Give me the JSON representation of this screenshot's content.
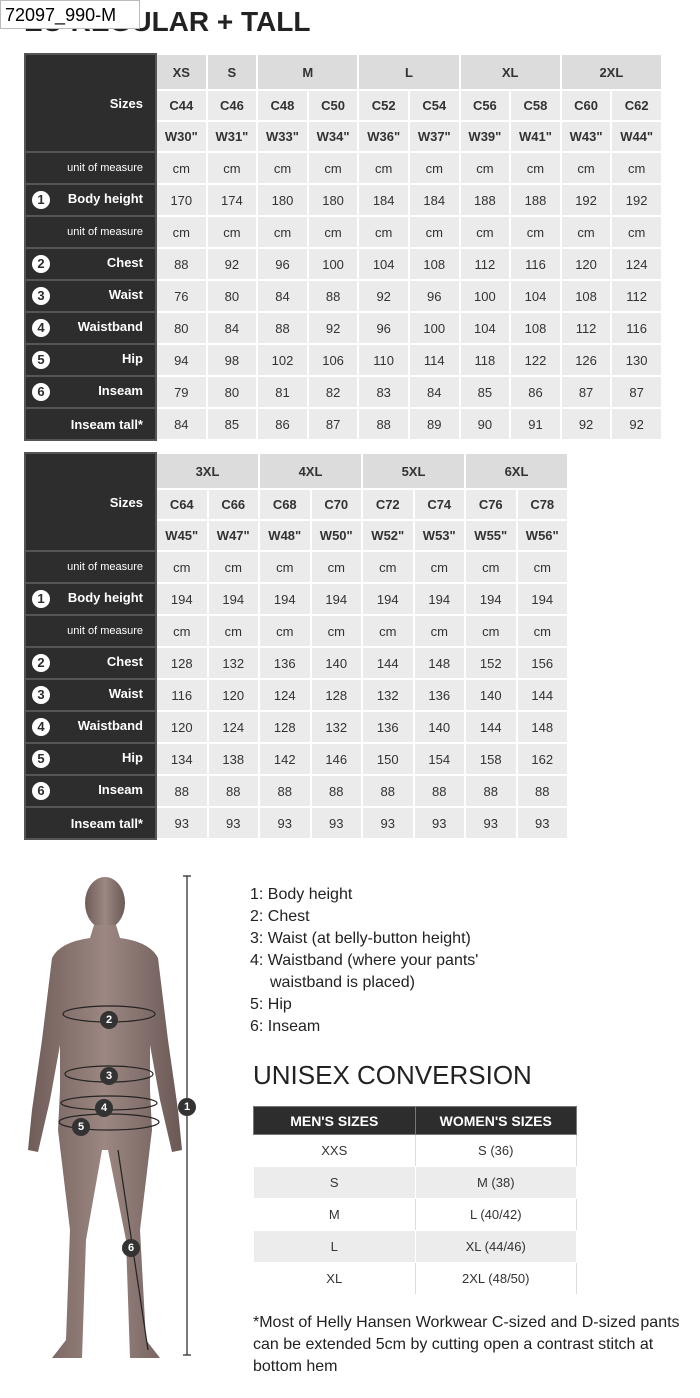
{
  "label_tag": "72097_990-M",
  "title": "EU REGULAR + TALL",
  "tables": [
    {
      "header_label": "Sizes",
      "groups": [
        {
          "name": "XS",
          "sizes": [
            {
              "c": "C44",
              "w": "W30\""
            }
          ]
        },
        {
          "name": "S",
          "sizes": [
            {
              "c": "C46",
              "w": "W31\""
            }
          ]
        },
        {
          "name": "M",
          "sizes": [
            {
              "c": "C48",
              "w": "W33\""
            },
            {
              "c": "C50",
              "w": "W34\""
            }
          ]
        },
        {
          "name": "L",
          "sizes": [
            {
              "c": "C52",
              "w": "W36\""
            },
            {
              "c": "C54",
              "w": "W37\""
            }
          ]
        },
        {
          "name": "XL",
          "sizes": [
            {
              "c": "C56",
              "w": "W39\""
            },
            {
              "c": "C58",
              "w": "W41\""
            }
          ]
        },
        {
          "name": "2XL",
          "sizes": [
            {
              "c": "C60",
              "w": "W43\""
            },
            {
              "c": "C62",
              "w": "W44\""
            }
          ]
        }
      ],
      "rows": [
        {
          "label": "unit of measure",
          "values": [
            "cm",
            "cm",
            "cm",
            "cm",
            "cm",
            "cm",
            "cm",
            "cm",
            "cm",
            "cm"
          ]
        },
        {
          "number": 1,
          "label": "Body height",
          "values": [
            170,
            174,
            180,
            180,
            184,
            184,
            188,
            188,
            192,
            192
          ]
        },
        {
          "label": "unit of measure",
          "values": [
            "cm",
            "cm",
            "cm",
            "cm",
            "cm",
            "cm",
            "cm",
            "cm",
            "cm",
            "cm"
          ]
        },
        {
          "number": 2,
          "label": "Chest",
          "values": [
            88,
            92,
            96,
            100,
            104,
            108,
            112,
            116,
            120,
            124
          ]
        },
        {
          "number": 3,
          "label": "Waist",
          "values": [
            76,
            80,
            84,
            88,
            92,
            96,
            100,
            104,
            108,
            112
          ]
        },
        {
          "number": 4,
          "label": "Waistband",
          "values": [
            80,
            84,
            88,
            92,
            96,
            100,
            104,
            108,
            112,
            116
          ]
        },
        {
          "number": 5,
          "label": "Hip",
          "values": [
            94,
            98,
            102,
            106,
            110,
            114,
            118,
            122,
            126,
            130
          ]
        },
        {
          "number": 6,
          "label": "Inseam",
          "values": [
            79,
            80,
            81,
            82,
            83,
            84,
            85,
            86,
            87,
            87
          ]
        },
        {
          "label": "Inseam tall*",
          "values": [
            84,
            85,
            86,
            87,
            88,
            89,
            90,
            91,
            92,
            92
          ]
        }
      ]
    },
    {
      "header_label": "Sizes",
      "groups": [
        {
          "name": "3XL",
          "sizes": [
            {
              "c": "C64",
              "w": "W45\""
            },
            {
              "c": "C66",
              "w": "W47\""
            }
          ]
        },
        {
          "name": "4XL",
          "sizes": [
            {
              "c": "C68",
              "w": "W48\""
            },
            {
              "c": "C70",
              "w": "W50\""
            }
          ]
        },
        {
          "name": "5XL",
          "sizes": [
            {
              "c": "C72",
              "w": "W52\""
            },
            {
              "c": "C74",
              "w": "W53\""
            }
          ]
        },
        {
          "name": "6XL",
          "sizes": [
            {
              "c": "C76",
              "w": "W55\""
            },
            {
              "c": "C78",
              "w": "W56\""
            }
          ]
        }
      ],
      "rows": [
        {
          "label": "unit of measure",
          "values": [
            "cm",
            "cm",
            "cm",
            "cm",
            "cm",
            "cm",
            "cm",
            "cm"
          ]
        },
        {
          "number": 1,
          "label": "Body height",
          "values": [
            194,
            194,
            194,
            194,
            194,
            194,
            194,
            194
          ]
        },
        {
          "label": "unit of measure",
          "values": [
            "cm",
            "cm",
            "cm",
            "cm",
            "cm",
            "cm",
            "cm",
            "cm"
          ]
        },
        {
          "number": 2,
          "label": "Chest",
          "values": [
            128,
            132,
            136,
            140,
            144,
            148,
            152,
            156
          ]
        },
        {
          "number": 3,
          "label": "Waist",
          "values": [
            116,
            120,
            124,
            128,
            132,
            136,
            140,
            144
          ]
        },
        {
          "number": 4,
          "label": "Waistband",
          "values": [
            120,
            124,
            128,
            132,
            136,
            140,
            144,
            148
          ]
        },
        {
          "number": 5,
          "label": "Hip",
          "values": [
            134,
            138,
            142,
            146,
            150,
            154,
            158,
            162
          ]
        },
        {
          "number": 6,
          "label": "Inseam",
          "values": [
            88,
            88,
            88,
            88,
            88,
            88,
            88,
            88
          ]
        },
        {
          "label": "Inseam tall*",
          "values": [
            93,
            93,
            93,
            93,
            93,
            93,
            93,
            93
          ]
        }
      ]
    }
  ],
  "figure": {
    "markers": [
      1,
      2,
      3,
      4,
      5,
      6
    ]
  },
  "legend": [
    "1: Body height",
    "2: Chest",
    "3: Waist (at belly-button height)",
    "4: Waistband (where your pants' waistband is placed)",
    "5: Hip",
    "6: Inseam"
  ],
  "unisex": {
    "title": "UNISEX CONVERSION",
    "headers": [
      "MEN'S SIZES",
      "WOMEN'S SIZES"
    ],
    "rows": [
      [
        "XXS",
        "S (36)"
      ],
      [
        "S",
        "M (38)"
      ],
      [
        "M",
        "L (40/42)"
      ],
      [
        "L",
        "XL (44/46)"
      ],
      [
        "XL",
        "2XL (48/50)"
      ]
    ]
  },
  "footnote": "*Most of Helly Hansen Workwear C-sized and D-sized pants can be extended 5cm by cutting open a contrast stitch at bottom hem"
}
